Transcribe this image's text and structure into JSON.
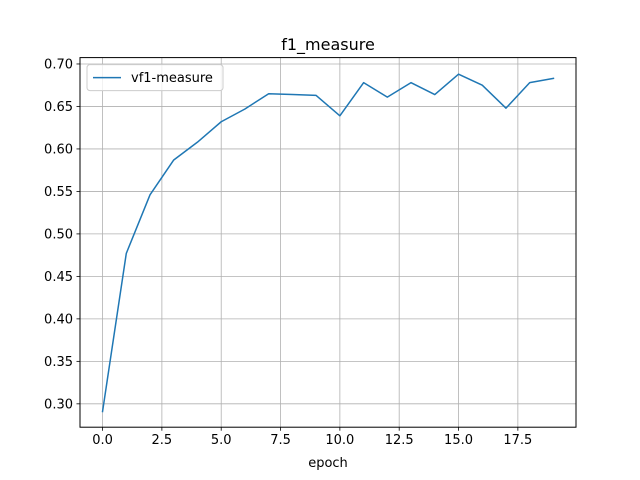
{
  "chart_data": {
    "type": "line",
    "title": "f1_measure",
    "xlabel": "epoch",
    "ylabel": "",
    "xlim": [
      -0.95,
      19.95
    ],
    "ylim": [
      0.2725,
      0.7075
    ],
    "xticks": [
      0.0,
      2.5,
      5.0,
      7.5,
      10.0,
      12.5,
      15.0,
      17.5
    ],
    "xtick_labels": [
      "0.0",
      "2.5",
      "5.0",
      "7.5",
      "10.0",
      "12.5",
      "15.0",
      "17.5"
    ],
    "yticks": [
      0.3,
      0.35,
      0.4,
      0.45,
      0.5,
      0.55,
      0.6,
      0.65,
      0.7
    ],
    "ytick_labels": [
      "0.30",
      "0.35",
      "0.40",
      "0.45",
      "0.50",
      "0.55",
      "0.60",
      "0.65",
      "0.70"
    ],
    "grid": true,
    "legend": "upper-left",
    "series": [
      {
        "name": "vf1-measure",
        "color": "#1f77b4",
        "x": [
          0,
          1,
          2,
          3,
          4,
          5,
          6,
          7,
          8,
          9,
          10,
          11,
          12,
          13,
          14,
          15,
          16,
          17,
          18,
          19
        ],
        "values": [
          0.291,
          0.477,
          0.546,
          0.587,
          0.608,
          0.632,
          0.647,
          0.665,
          0.664,
          0.663,
          0.639,
          0.678,
          0.661,
          0.678,
          0.664,
          0.688,
          0.675,
          0.648,
          0.678,
          0.683
        ]
      }
    ]
  }
}
